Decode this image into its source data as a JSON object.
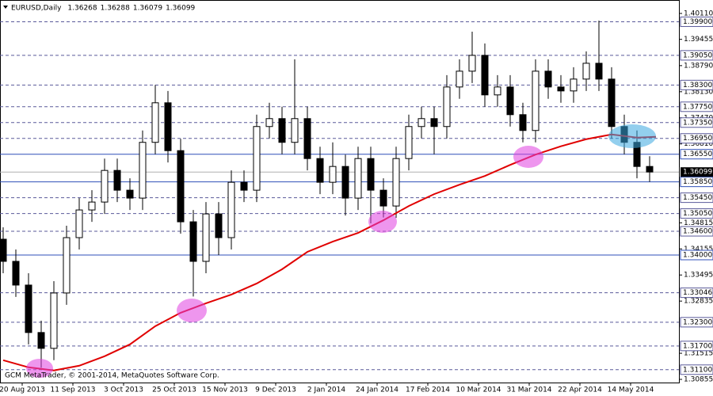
{
  "chart_data": {
    "type": "candlestick",
    "title": "EURUSD,Daily",
    "quote": [
      1.36268,
      1.36288,
      1.36079,
      1.36099
    ],
    "footer": "GCM MetaTrader, © 2001-2014, MetaQuotes Software Corp.",
    "xlim": [
      -1,
      213.25
    ],
    "ylim": [
      1.30775,
      1.4045
    ],
    "xticks": [
      {
        "value": 6,
        "label": "20 Aug 2013"
      },
      {
        "value": 22,
        "label": "11 Sep 2013"
      },
      {
        "value": 38,
        "label": "3 Oct 2013"
      },
      {
        "value": 54,
        "label": "25 Oct 2013"
      },
      {
        "value": 70,
        "label": "15 Nov 2013"
      },
      {
        "value": 86,
        "label": "9 Dec 2013"
      },
      {
        "value": 102,
        "label": "2 Jan 2014"
      },
      {
        "value": 118,
        "label": "24 Jan 2014"
      },
      {
        "value": 134,
        "label": "17 Feb 2014"
      },
      {
        "value": 150,
        "label": "10 Mar 2014"
      },
      {
        "value": 166,
        "label": "31 Mar 2014"
      },
      {
        "value": 182,
        "label": "22 Apr 2014"
      },
      {
        "value": 198,
        "label": "14 May 2014"
      }
    ],
    "yticks": [
      {
        "value": 1.4011,
        "label": "1.40110"
      },
      1.39455,
      {
        "value": 1.3879,
        "label": "1.38790"
      },
      {
        "value": 1.3813,
        "label": "1.38130"
      },
      {
        "value": 1.3747,
        "label": "1.37470"
      },
      {
        "value": 1.3681,
        "label": "1.36810"
      },
      1.34815,
      1.34155,
      1.33495,
      1.32835,
      1.31515,
      1.30855
    ],
    "candles": {
      "x": [
        0,
        4,
        8,
        12,
        16,
        20,
        24,
        28,
        32,
        36,
        40,
        44,
        48,
        52,
        56,
        60,
        64,
        68,
        72,
        76,
        80,
        84,
        88,
        92,
        96,
        100,
        104,
        108,
        112,
        116,
        120,
        124,
        128,
        132,
        136,
        140,
        144,
        148,
        152,
        156,
        160,
        164,
        168,
        172,
        176,
        180,
        184,
        188,
        192,
        196,
        200,
        204
      ],
      "open": [
        1.344,
        1.3384,
        1.3324,
        1.3204,
        1.3164,
        1.3304,
        1.3444,
        1.3514,
        1.3534,
        1.3614,
        1.3564,
        1.3544,
        1.3685,
        1.3785,
        1.3664,
        1.3484,
        1.3384,
        1.3504,
        1.3444,
        1.3584,
        1.3564,
        1.3725,
        1.3745,
        1.3685,
        1.3745,
        1.3644,
        1.3584,
        1.3624,
        1.3544,
        1.3644,
        1.3564,
        1.3524,
        1.3644,
        1.3725,
        1.3745,
        1.3725,
        1.3825,
        1.3865,
        1.3905,
        1.3805,
        1.3825,
        1.3755,
        1.3715,
        1.3865,
        1.3825,
        1.3815,
        1.3845,
        1.3885,
        1.3845,
        1.3725,
        1.3685,
        1.3624
      ],
      "high": [
        1.347,
        1.3414,
        1.3354,
        1.3234,
        1.3334,
        1.3474,
        1.3544,
        1.3564,
        1.3644,
        1.3644,
        1.3594,
        1.3715,
        1.383,
        1.3815,
        1.3694,
        1.3514,
        1.3534,
        1.3534,
        1.3614,
        1.3614,
        1.3755,
        1.3785,
        1.3775,
        1.3895,
        1.3775,
        1.3674,
        1.3685,
        1.3654,
        1.3674,
        1.3674,
        1.3594,
        1.3674,
        1.3755,
        1.3775,
        1.3775,
        1.3855,
        1.3895,
        1.3965,
        1.3935,
        1.3855,
        1.3855,
        1.3785,
        1.3895,
        1.3895,
        1.3855,
        1.3875,
        1.3915,
        1.3993,
        1.3875,
        1.3755,
        1.3715,
        1.365
      ],
      "low": [
        1.3354,
        1.3294,
        1.3174,
        1.3115,
        1.3134,
        1.3274,
        1.3414,
        1.3484,
        1.3504,
        1.3534,
        1.3514,
        1.3514,
        1.3655,
        1.3634,
        1.3454,
        1.3295,
        1.3354,
        1.34,
        1.3414,
        1.3534,
        1.3534,
        1.3695,
        1.3655,
        1.3655,
        1.3614,
        1.3554,
        1.3554,
        1.35,
        1.3514,
        1.348,
        1.3495,
        1.3494,
        1.3614,
        1.3695,
        1.3655,
        1.3695,
        1.3795,
        1.3835,
        1.3775,
        1.3775,
        1.3725,
        1.3685,
        1.3685,
        1.3795,
        1.3785,
        1.3785,
        1.3815,
        1.3815,
        1.3695,
        1.3655,
        1.3594,
        1.3585
      ],
      "close": [
        1.3384,
        1.3324,
        1.3204,
        1.3164,
        1.3304,
        1.3444,
        1.3514,
        1.3534,
        1.3614,
        1.3564,
        1.3544,
        1.3685,
        1.3785,
        1.3664,
        1.3484,
        1.3384,
        1.3504,
        1.3444,
        1.3584,
        1.3564,
        1.3725,
        1.3745,
        1.3685,
        1.3745,
        1.3644,
        1.3584,
        1.3624,
        1.3544,
        1.3644,
        1.3564,
        1.3524,
        1.3644,
        1.3725,
        1.3745,
        1.3725,
        1.3825,
        1.3865,
        1.3905,
        1.3805,
        1.3825,
        1.3755,
        1.3715,
        1.3865,
        1.3825,
        1.3815,
        1.3845,
        1.3885,
        1.3845,
        1.3725,
        1.3685,
        1.3624,
        1.361
      ]
    },
    "moving_average": {
      "color": "#e00000",
      "x": [
        0,
        8,
        16,
        24,
        32,
        40,
        48,
        56,
        64,
        72,
        80,
        88,
        96,
        104,
        112,
        120,
        128,
        136,
        144,
        152,
        160,
        168,
        176,
        184,
        192,
        200,
        206
      ],
      "values": [
        1.3134,
        1.3116,
        1.3108,
        1.312,
        1.3144,
        1.3174,
        1.322,
        1.3254,
        1.3278,
        1.33,
        1.3328,
        1.3364,
        1.3408,
        1.3434,
        1.3456,
        1.3488,
        1.3524,
        1.3554,
        1.3578,
        1.36,
        1.3628,
        1.3654,
        1.3675,
        1.3693,
        1.3705,
        1.3697,
        1.3699
      ]
    },
    "levels": [
      {
        "value": 1.399,
        "label": "1.39900",
        "style": "dash"
      },
      {
        "value": 1.3905,
        "label": "1.39050",
        "style": "dash"
      },
      {
        "value": 1.383,
        "label": "1.38300",
        "style": "dash"
      },
      {
        "value": 1.3775,
        "label": "1.37750",
        "style": "dash"
      },
      {
        "value": 1.3735,
        "label": "1.37350",
        "style": "dash"
      },
      {
        "value": 1.3695,
        "label": "1.36950",
        "style": "dash"
      },
      {
        "value": 1.3655,
        "label": "1.36550",
        "style": "solid"
      },
      {
        "value": 1.3585,
        "label": "1.35850",
        "style": "solid"
      },
      {
        "value": 1.3545,
        "label": "1.35450",
        "style": "dash"
      },
      {
        "value": 1.3505,
        "label": "1.35050",
        "style": "dash"
      },
      {
        "value": 1.346,
        "label": "1.34600",
        "style": "dash"
      },
      {
        "value": 1.34,
        "label": "1.34000",
        "style": "solid"
      },
      {
        "value": 1.33046,
        "style": "dash"
      },
      {
        "value": 1.323,
        "label": "1.32300",
        "style": "dash"
      },
      {
        "value": 1.317,
        "label": "1.31700",
        "style": "dash"
      },
      {
        "value": 1.311,
        "label": "1.31100",
        "style": "dash"
      }
    ],
    "level_colors": {
      "dash": "#5a5a9a",
      "solid": "#2f4fb8"
    }
  }
}
